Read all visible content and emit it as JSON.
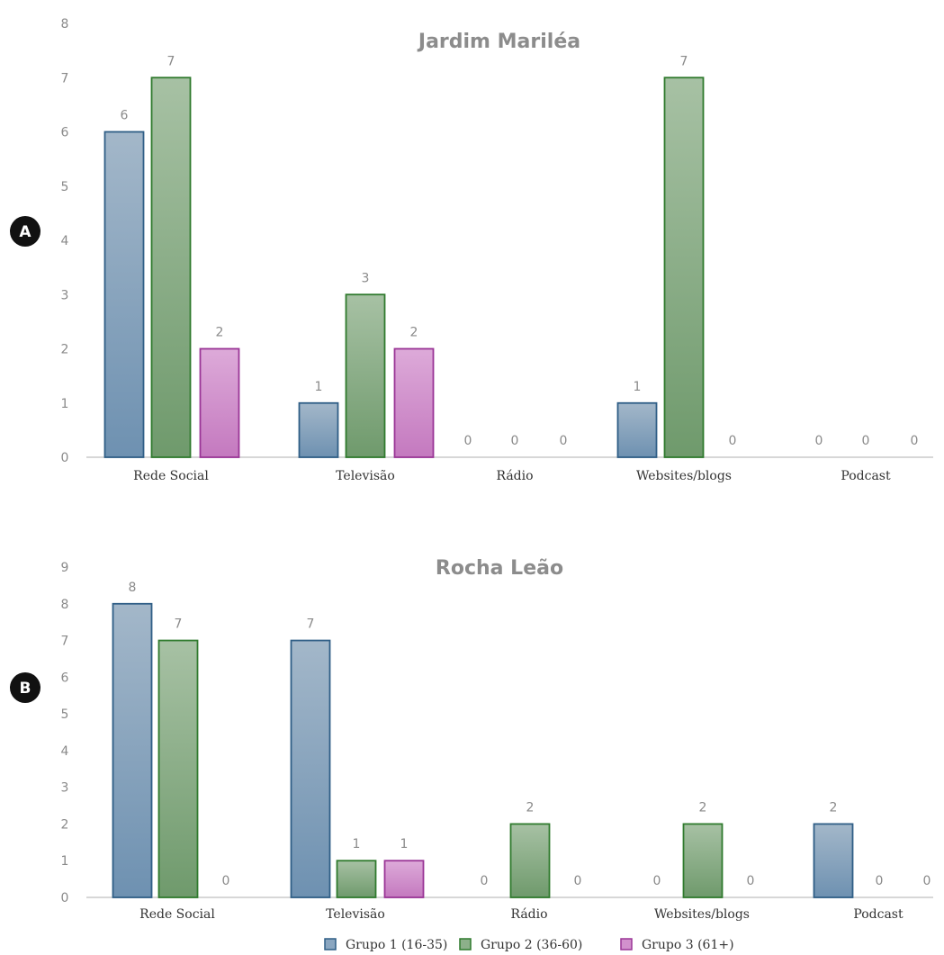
{
  "colors": {
    "g1_top": "#a3b7c9",
    "g1_bottom": "#6e91b1",
    "g1_stroke": "#2f5e86",
    "g2_top": "#a7c1a4",
    "g2_bottom": "#6f9a6c",
    "g2_stroke": "#2f7a2d",
    "g3_top": "#ddaad9",
    "g3_bottom": "#c479bf",
    "g3_stroke": "#9a3596"
  },
  "legend": [
    "Grupo 1 (16-35)",
    "Grupo 2 (36-60)",
    "Grupo 3 (61+)"
  ],
  "chart_data": [
    {
      "type": "bar",
      "panel": "A",
      "title": "Jardim Mariléa",
      "categories": [
        "Rede Social",
        "Televisão",
        "Rádio",
        "Websites/blogs",
        "Podcast"
      ],
      "series": [
        {
          "name": "Grupo 1 (16-35)",
          "values": [
            6,
            1,
            0,
            1,
            0
          ]
        },
        {
          "name": "Grupo 2 (36-60)",
          "values": [
            7,
            3,
            0,
            7,
            0
          ]
        },
        {
          "name": "Grupo 3 (61+)",
          "values": [
            2,
            2,
            0,
            0,
            0
          ]
        }
      ],
      "ylim": [
        0,
        8
      ],
      "yticks": [
        "0",
        "1",
        "2",
        "3",
        "4",
        "5",
        "6",
        "7",
        "8"
      ],
      "xlabel": "",
      "ylabel": "",
      "grid": false
    },
    {
      "type": "bar",
      "panel": "B",
      "title": "Rocha Leão",
      "categories": [
        "Rede Social",
        "Televisão",
        "Rádio",
        "Websites/blogs",
        "Podcast"
      ],
      "series": [
        {
          "name": "Grupo 1 (16-35)",
          "values": [
            8,
            7,
            0,
            0,
            2
          ]
        },
        {
          "name": "Grupo 2 (36-60)",
          "values": [
            7,
            1,
            2,
            2,
            0
          ]
        },
        {
          "name": "Grupo 3 (61+)",
          "values": [
            0,
            1,
            0,
            0,
            0
          ]
        }
      ],
      "ylim": [
        0,
        9
      ],
      "yticks": [
        "0",
        "1",
        "2",
        "3",
        "4",
        "5",
        "6",
        "7",
        "8",
        "9"
      ],
      "xlabel": "",
      "ylabel": "",
      "grid": false
    }
  ]
}
